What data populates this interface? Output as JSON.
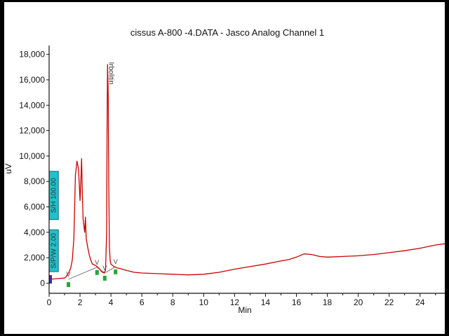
{
  "chart_data": {
    "type": "line",
    "title": "cissus A-800 -4.DATA - Jasco Analog Channel 1",
    "xlabel": "Min",
    "ylabel": "uV",
    "xlim": [
      0,
      25.6
    ],
    "ylim": [
      -800,
      18700
    ],
    "x_ticks": [
      0,
      2,
      4,
      6,
      8,
      10,
      12,
      14,
      16,
      18,
      20,
      22,
      24
    ],
    "y_ticks": [
      0,
      2000,
      4000,
      6000,
      8000,
      10000,
      12000,
      14000,
      16000,
      18000
    ],
    "y_tick_labels": [
      "0",
      "2,000",
      "4,000",
      "6,000",
      "8,000",
      "10,000",
      "12,000",
      "14,000",
      "16,000",
      "18,000"
    ],
    "grid": false,
    "series": [
      {
        "color": "#cc0000",
        "x": [
          0,
          0.5,
          1.0,
          1.1,
          1.2,
          1.3,
          1.4,
          1.5,
          1.6,
          1.7,
          1.8,
          1.9,
          2.0,
          2.05,
          2.1,
          2.15,
          2.2,
          2.3,
          2.35,
          2.4,
          2.5,
          2.6,
          2.7,
          2.8,
          3.0,
          3.2,
          3.4,
          3.55,
          3.65,
          3.72,
          3.75,
          3.78,
          3.82,
          3.86,
          3.9,
          3.95,
          4.0,
          4.1,
          4.2,
          4.4,
          4.6,
          5.0,
          5.5,
          6.0,
          7.0,
          8.0,
          9.0,
          10.0,
          11.0,
          12.0,
          13.0,
          14.0,
          15.0,
          15.5,
          16.0,
          16.5,
          17.0,
          17.5,
          18.0,
          19.0,
          20.0,
          21.0,
          22.0,
          23.0,
          24.0,
          25.0,
          25.6
        ],
        "y": [
          300,
          350,
          400,
          500,
          700,
          900,
          1200,
          1800,
          3500,
          8500,
          9600,
          9000,
          6500,
          8000,
          9800,
          7000,
          5000,
          4000,
          5200,
          3500,
          2800,
          2200,
          1800,
          1500,
          1400,
          1200,
          900,
          800,
          1000,
          4000,
          12000,
          17200,
          15000,
          8000,
          3000,
          1800,
          1500,
          1400,
          1300,
          1200,
          1150,
          1000,
          850,
          800,
          750,
          700,
          650,
          700,
          850,
          1100,
          1300,
          1500,
          1750,
          1850,
          2050,
          2300,
          2250,
          2100,
          2050,
          2100,
          2150,
          2250,
          2400,
          2550,
          2750,
          3000,
          3100
        ]
      }
    ],
    "baseline": {
      "color": "#888888",
      "x": [
        1.25,
        3.1,
        3.6,
        4.3
      ],
      "y": [
        300,
        1250,
        800,
        1300
      ]
    },
    "baseline_markers": [
      "V",
      "V",
      "V",
      "V"
    ],
    "peak_label": "Irbolitin",
    "events": [
      {
        "label": "S/H 100.00",
        "x_start": 0,
        "x_end": 0.6,
        "y_start": 5000,
        "y_end": 8800
      },
      {
        "label": "S/P/W 2.00",
        "x_start": 0,
        "x_end": 0.6,
        "y_start": 900,
        "y_end": 4200
      }
    ]
  },
  "colors": {
    "trace": "#cc0000",
    "baseline": "#888888",
    "event_box": "#22c0cc",
    "start_marker": "#2233aa",
    "peak_marker": "#22aa33"
  }
}
